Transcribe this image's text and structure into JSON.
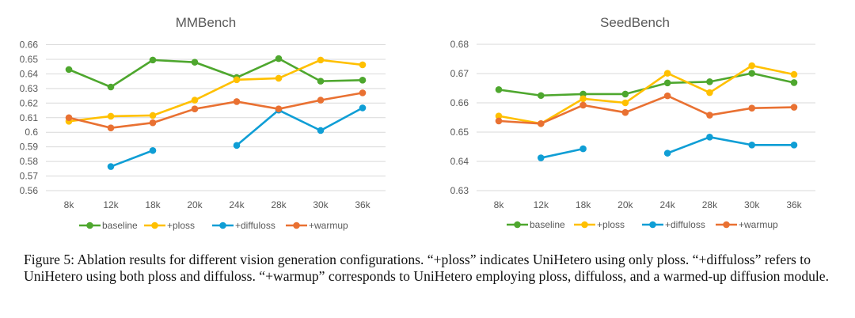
{
  "chart_data": [
    {
      "type": "line",
      "title": "MMBench",
      "xlabel": "",
      "ylabel": "",
      "categories": [
        "8k",
        "12k",
        "18k",
        "20k",
        "24k",
        "28k",
        "30k",
        "36k"
      ],
      "ylim": [
        0.56,
        0.66
      ],
      "yticks": [
        0.56,
        0.57,
        0.58,
        0.59,
        0.6,
        0.61,
        0.62,
        0.63,
        0.64,
        0.65,
        0.66
      ],
      "ytick_labels": [
        "0.56",
        "0.57",
        "0.58",
        "0.59",
        "0.6",
        "0.61",
        "0.62",
        "0.63",
        "0.64",
        "0.65",
        "0.66"
      ],
      "grid": true,
      "legend_position": "bottom",
      "series": [
        {
          "name": "baseline",
          "color": "#4ea72e",
          "values": [
            0.643,
            0.631,
            0.6495,
            0.648,
            0.6375,
            0.6505,
            0.635,
            0.6357
          ]
        },
        {
          "name": "+ploss",
          "color": "#ffc000",
          "values": [
            0.6075,
            0.611,
            0.6115,
            0.622,
            0.636,
            0.637,
            0.6495,
            0.6462
          ]
        },
        {
          "name": "+diffuloss",
          "color": "#0f9ed5",
          "values": [
            null,
            0.5765,
            0.5875,
            null,
            0.591,
            0.6152,
            0.6012,
            0.6167
          ]
        },
        {
          "name": "+warmup",
          "color": "#e97132",
          "values": [
            0.61,
            0.603,
            0.6065,
            0.616,
            0.621,
            0.616,
            0.622,
            0.627
          ]
        }
      ]
    },
    {
      "type": "line",
      "title": "SeedBench",
      "xlabel": "",
      "ylabel": "",
      "categories": [
        "8k",
        "12k",
        "18k",
        "20k",
        "24k",
        "28k",
        "30k",
        "36k"
      ],
      "ylim": [
        0.63,
        0.68
      ],
      "yticks": [
        0.63,
        0.64,
        0.65,
        0.66,
        0.67,
        0.68
      ],
      "ytick_labels": [
        "0.63",
        "0.64",
        "0.65",
        "0.66",
        "0.67",
        "0.68"
      ],
      "grid": true,
      "legend_position": "bottom",
      "series": [
        {
          "name": "baseline",
          "color": "#4ea72e",
          "values": [
            0.6645,
            0.6625,
            0.663,
            0.663,
            0.6668,
            0.6672,
            0.6701,
            0.6669
          ]
        },
        {
          "name": "+ploss",
          "color": "#ffc000",
          "values": [
            0.6555,
            0.6529,
            0.6614,
            0.66,
            0.6701,
            0.6635,
            0.6727,
            0.6697
          ]
        },
        {
          "name": "+diffuloss",
          "color": "#0f9ed5",
          "values": [
            null,
            0.6412,
            0.6443,
            null,
            0.6428,
            0.6483,
            0.6456,
            0.6456
          ]
        },
        {
          "name": "+warmup",
          "color": "#e97132",
          "values": [
            0.6538,
            0.6529,
            0.6592,
            0.6567,
            0.6624,
            0.6558,
            0.6582,
            0.6585
          ]
        }
      ]
    }
  ],
  "caption": "Figure 5: Ablation results for different vision generation configurations. “+ploss” indicates UniHetero using only ploss. “+diffuloss” refers to UniHetero using both ploss and diffuloss. “+warmup” corresponds to UniHetero employing ploss, diffuloss, and a warmed-up diffusion module."
}
